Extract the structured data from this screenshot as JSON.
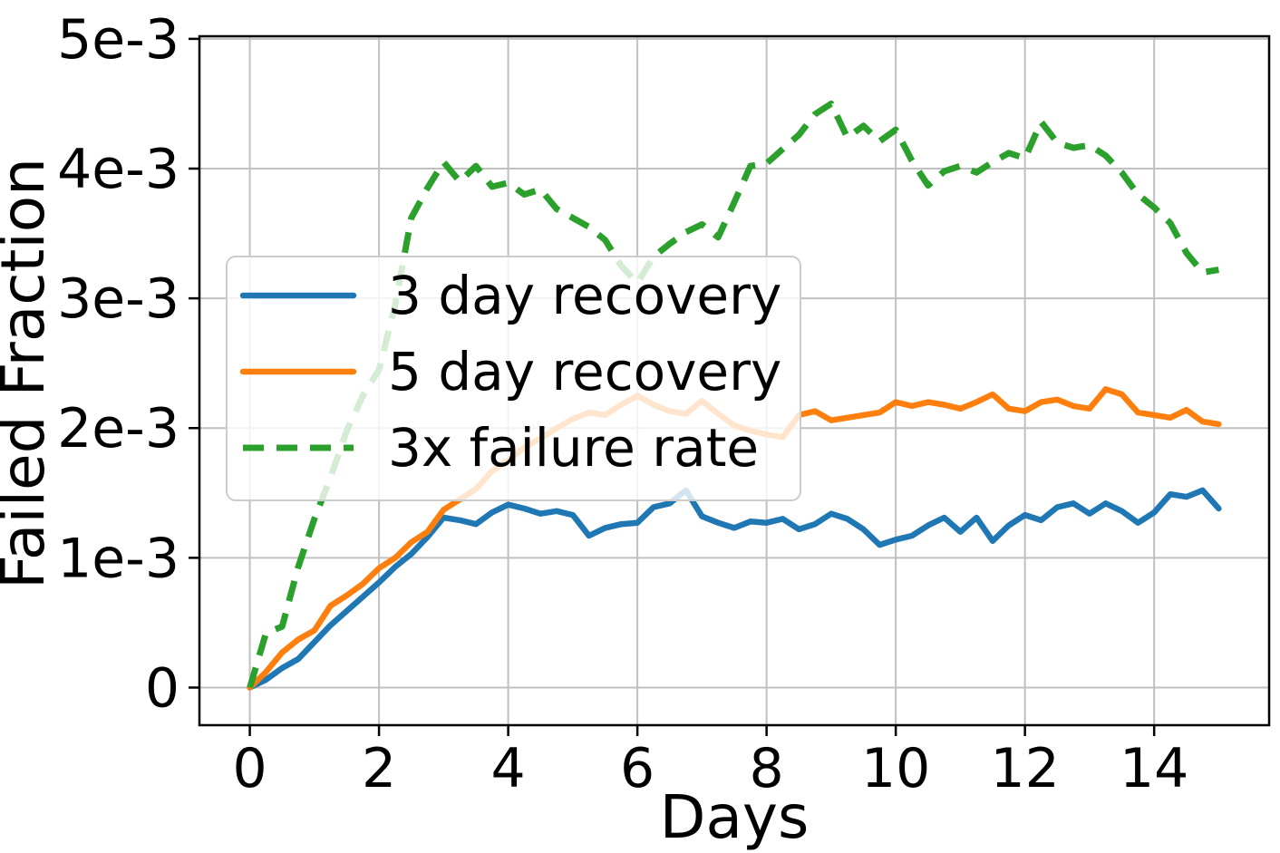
{
  "chart_data": {
    "type": "line",
    "title": "",
    "xlabel": "Days",
    "ylabel": "Failed Fraction",
    "xlim": [
      -0.78,
      15.78
    ],
    "ylim": [
      -0.00029,
      0.00502
    ],
    "grid": true,
    "legend_position": "upper-left-inside",
    "x_ticks": {
      "values": [
        0,
        2,
        4,
        6,
        8,
        10,
        12,
        14
      ],
      "labels": [
        "0",
        "2",
        "4",
        "6",
        "8",
        "10",
        "12",
        "14"
      ]
    },
    "y_ticks": {
      "values": [
        0,
        0.001,
        0.002,
        0.003,
        0.004,
        0.005
      ],
      "labels": [
        "0",
        "1e-3",
        "2e-3",
        "3e-3",
        "4e-3",
        "5e-3"
      ]
    },
    "x": [
      0,
      0.25,
      0.5,
      0.75,
      1,
      1.25,
      1.5,
      1.75,
      2,
      2.25,
      2.5,
      2.75,
      3,
      3.25,
      3.5,
      3.75,
      4,
      4.25,
      4.5,
      4.75,
      5,
      5.25,
      5.5,
      5.75,
      6,
      6.25,
      6.5,
      6.75,
      7,
      7.25,
      7.5,
      7.75,
      8,
      8.25,
      8.5,
      8.75,
      9,
      9.25,
      9.5,
      9.75,
      10,
      10.25,
      10.5,
      10.75,
      11,
      11.25,
      11.5,
      11.75,
      12,
      12.25,
      12.5,
      12.75,
      13,
      13.25,
      13.5,
      13.75,
      14,
      14.25,
      14.5,
      14.75,
      15
    ],
    "series": [
      {
        "name": "3 day recovery",
        "color": "#1f77b4",
        "dash": "solid",
        "values": [
          0,
          6e-05,
          0.00015,
          0.00022,
          0.00035,
          0.00048,
          0.00059,
          0.0007,
          0.00081,
          0.00093,
          0.00103,
          0.00116,
          0.00131,
          0.00129,
          0.00126,
          0.00135,
          0.00141,
          0.00138,
          0.00134,
          0.00136,
          0.00133,
          0.00117,
          0.00123,
          0.00126,
          0.00127,
          0.00139,
          0.00142,
          0.00152,
          0.00132,
          0.00127,
          0.00123,
          0.00128,
          0.00127,
          0.0013,
          0.00122,
          0.00126,
          0.00134,
          0.0013,
          0.00122,
          0.0011,
          0.00114,
          0.00117,
          0.00125,
          0.00131,
          0.0012,
          0.00131,
          0.00113,
          0.00125,
          0.00133,
          0.00129,
          0.00139,
          0.00142,
          0.00134,
          0.00142,
          0.00136,
          0.00127,
          0.00135,
          0.00149,
          0.00147,
          0.00152,
          0.00138
        ]
      },
      {
        "name": "5 day recovery",
        "color": "#ff7f0e",
        "dash": "solid",
        "values": [
          0,
          0.00012,
          0.00027,
          0.00037,
          0.00044,
          0.00063,
          0.00071,
          0.0008,
          0.00092,
          0.001,
          0.00112,
          0.0012,
          0.00137,
          0.00145,
          0.00153,
          0.00167,
          0.00175,
          0.00185,
          0.00192,
          0.002,
          0.00207,
          0.00212,
          0.0021,
          0.00218,
          0.00225,
          0.00218,
          0.00213,
          0.00211,
          0.00221,
          0.00211,
          0.00202,
          0.00198,
          0.00195,
          0.00193,
          0.0021,
          0.00213,
          0.00206,
          0.00208,
          0.0021,
          0.00212,
          0.0022,
          0.00217,
          0.0022,
          0.00218,
          0.00215,
          0.0022,
          0.00226,
          0.00215,
          0.00213,
          0.0022,
          0.00222,
          0.00217,
          0.00215,
          0.0023,
          0.00226,
          0.00212,
          0.0021,
          0.00208,
          0.00214,
          0.00205,
          0.00203
        ]
      },
      {
        "name": "3x failure rate",
        "color": "#2ca02c",
        "dash": "dashed",
        "values": [
          0,
          0.00042,
          0.00047,
          0.00093,
          0.0013,
          0.00162,
          0.00198,
          0.00225,
          0.00245,
          0.00295,
          0.00362,
          0.00385,
          0.00405,
          0.0039,
          0.00402,
          0.00386,
          0.00389,
          0.0038,
          0.00384,
          0.00369,
          0.00362,
          0.00355,
          0.00345,
          0.00325,
          0.00312,
          0.00332,
          0.00342,
          0.00351,
          0.00357,
          0.00347,
          0.00374,
          0.00402,
          0.00404,
          0.00415,
          0.00426,
          0.00442,
          0.0045,
          0.00424,
          0.00433,
          0.00421,
          0.0043,
          0.00406,
          0.00387,
          0.00398,
          0.00402,
          0.00397,
          0.00405,
          0.00412,
          0.00408,
          0.00436,
          0.0042,
          0.00416,
          0.00418,
          0.0041,
          0.00397,
          0.0038,
          0.0037,
          0.00358,
          0.00335,
          0.0032,
          0.00322
        ]
      }
    ],
    "style": {
      "grid_color": "#c0c0c0",
      "spine_color": "#000000",
      "legend_face_color": "#ffffff",
      "legend_edge_color": "#cccccc",
      "legend_alpha": 0.8
    }
  }
}
